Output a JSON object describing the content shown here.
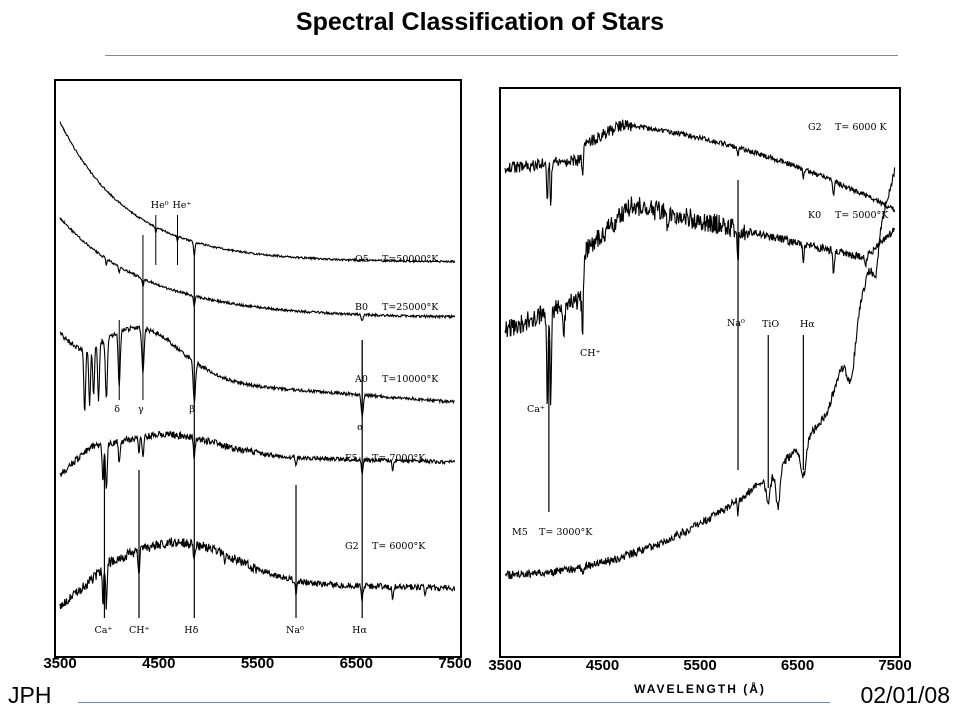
{
  "title": "Spectral Classification of Stars",
  "footer": {
    "left": "JPH",
    "right": "02/01/08"
  },
  "colors": {
    "ink": "#000000",
    "rule": "#7a8f9a",
    "background": "#ffffff"
  },
  "chart_data": [
    {
      "type": "line",
      "panel": "left",
      "xlim": [
        3500,
        7500
      ],
      "x_ticks": [
        "3500",
        "4500",
        "5500",
        "6500",
        "7500"
      ],
      "series": [
        {
          "name": "O5",
          "temperature": "T=50000°K",
          "label": "O5",
          "temp_label": "T=50000°K"
        },
        {
          "name": "B0",
          "temperature": "T=25000°K",
          "label": "B0",
          "temp_label": "T=25000°K"
        },
        {
          "name": "A0",
          "temperature": "T=10000°K",
          "label": "A0",
          "temp_label": "T=10000°K"
        },
        {
          "name": "F5",
          "temperature": "T= 7000°K",
          "label": "F5",
          "temp_label": "T= 7000°K"
        },
        {
          "name": "G2",
          "temperature": "T= 6000°K",
          "label": "G2",
          "temp_label": "T= 6000°K"
        }
      ],
      "line_markers": [
        {
          "label": "Ca⁺",
          "wavelength": 3950
        },
        {
          "label": "CH⁺",
          "wavelength": 4300
        },
        {
          "label": "Hδ",
          "wavelength": 4860
        },
        {
          "label": "Na⁰",
          "wavelength": 5890
        },
        {
          "label": "Hα",
          "wavelength": 6560
        }
      ],
      "annotations": [
        {
          "text": "He⁰",
          "wavelength": 4470
        },
        {
          "text": "He⁺",
          "wavelength": 4690
        },
        {
          "text": "δ",
          "wavelength": 4100
        },
        {
          "text": "γ",
          "wavelength": 4340
        },
        {
          "text": "β",
          "wavelength": 4860
        },
        {
          "text": "α",
          "wavelength": 6560
        }
      ]
    },
    {
      "type": "line",
      "panel": "right",
      "xlim": [
        3500,
        7500
      ],
      "x_ticks": [
        "3500",
        "4500",
        "5500",
        "6500",
        "7500"
      ],
      "xlabel": "WAVELENGTH (Å)",
      "series": [
        {
          "name": "G2",
          "temperature": "T= 6000 K",
          "label": "G2",
          "temp_label": "T= 6000 K"
        },
        {
          "name": "K0",
          "temperature": "T= 5000°K",
          "label": "K0",
          "temp_label": "T= 5000°K"
        },
        {
          "name": "M5",
          "temperature": "T= 3000°K",
          "label": "M5",
          "temp_label": "T= 3000°K"
        }
      ],
      "line_markers": [
        {
          "label": "Ca⁺",
          "wavelength": 3950
        },
        {
          "label": "CH⁺",
          "wavelength": 4300
        },
        {
          "label": "Na⁰",
          "wavelength": 5890
        },
        {
          "label": "TiO",
          "wavelength": 6200
        },
        {
          "label": "Hα",
          "wavelength": 6560
        }
      ]
    }
  ]
}
